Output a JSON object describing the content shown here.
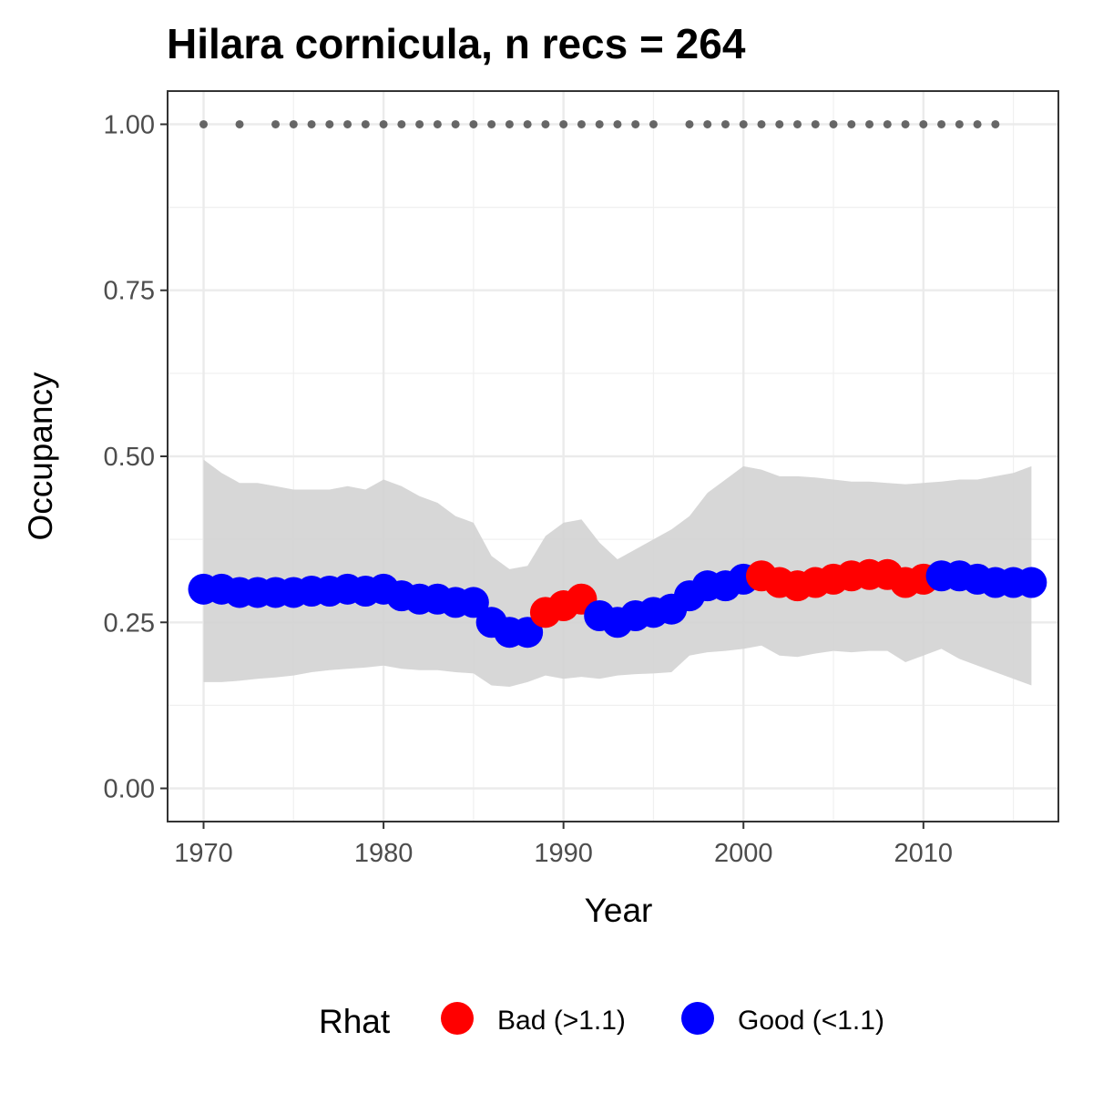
{
  "chart_data": {
    "type": "line",
    "title": "Hilara cornicula, n recs = 264",
    "xlabel": "Year",
    "ylabel": "Occupancy",
    "xlim": [
      1968,
      2017.5
    ],
    "ylim": [
      -0.05,
      1.05
    ],
    "x_ticks": [
      1970,
      1980,
      1990,
      2000,
      2010
    ],
    "x_tick_labels": [
      "1970",
      "1980",
      "1990",
      "2000",
      "2010"
    ],
    "y_ticks": [
      0,
      0.25,
      0.5,
      0.75,
      1.0
    ],
    "y_tick_labels": [
      "0.00",
      "0.25",
      "0.50",
      "0.75",
      "1.00"
    ],
    "grid": true,
    "legend": {
      "title": "Rhat",
      "position": "bottom",
      "entries": [
        {
          "label": "Bad (>1.1)",
          "color": "#ff0000"
        },
        {
          "label": "Good (<1.1)",
          "color": "#0000ff"
        }
      ]
    },
    "colors": {
      "bad": "#ff0000",
      "good": "#0000ff",
      "ribbon": "#d3d3d3",
      "record_dots": "#666666"
    },
    "x": [
      1970,
      1971,
      1972,
      1973,
      1974,
      1975,
      1976,
      1977,
      1978,
      1979,
      1980,
      1981,
      1982,
      1983,
      1984,
      1985,
      1986,
      1987,
      1988,
      1989,
      1990,
      1991,
      1992,
      1993,
      1994,
      1995,
      1996,
      1997,
      1998,
      1999,
      2000,
      2001,
      2002,
      2003,
      2004,
      2005,
      2006,
      2007,
      2008,
      2009,
      2010,
      2011,
      2012,
      2013,
      2014,
      2015,
      2016
    ],
    "series": [
      {
        "name": "Occupancy",
        "values": [
          0.3,
          0.3,
          0.295,
          0.295,
          0.295,
          0.295,
          0.297,
          0.297,
          0.3,
          0.297,
          0.3,
          0.29,
          0.285,
          0.285,
          0.28,
          0.28,
          0.25,
          0.235,
          0.235,
          0.265,
          0.275,
          0.285,
          0.26,
          0.25,
          0.26,
          0.265,
          0.27,
          0.29,
          0.305,
          0.305,
          0.315,
          0.32,
          0.31,
          0.305,
          0.31,
          0.315,
          0.32,
          0.322,
          0.322,
          0.31,
          0.315,
          0.32,
          0.32,
          0.315,
          0.31,
          0.31,
          0.31
        ],
        "rhat": [
          "Good",
          "Good",
          "Good",
          "Good",
          "Good",
          "Good",
          "Good",
          "Good",
          "Good",
          "Good",
          "Good",
          "Good",
          "Good",
          "Good",
          "Good",
          "Good",
          "Good",
          "Good",
          "Good",
          "Bad",
          "Bad",
          "Bad",
          "Good",
          "Good",
          "Good",
          "Good",
          "Good",
          "Good",
          "Good",
          "Good",
          "Good",
          "Bad",
          "Bad",
          "Bad",
          "Bad",
          "Bad",
          "Bad",
          "Bad",
          "Bad",
          "Bad",
          "Bad",
          "Good",
          "Good",
          "Good",
          "Good",
          "Good",
          "Good"
        ],
        "lower": [
          0.16,
          0.16,
          0.162,
          0.165,
          0.167,
          0.17,
          0.175,
          0.178,
          0.18,
          0.182,
          0.185,
          0.18,
          0.178,
          0.178,
          0.175,
          0.173,
          0.155,
          0.153,
          0.16,
          0.17,
          0.165,
          0.168,
          0.165,
          0.17,
          0.172,
          0.173,
          0.175,
          0.2,
          0.205,
          0.207,
          0.21,
          0.215,
          0.2,
          0.198,
          0.203,
          0.207,
          0.205,
          0.207,
          0.207,
          0.19,
          0.2,
          0.21,
          0.195,
          0.185,
          0.175,
          0.165,
          0.155
        ],
        "upper": [
          0.495,
          0.475,
          0.46,
          0.46,
          0.455,
          0.45,
          0.45,
          0.45,
          0.455,
          0.45,
          0.465,
          0.455,
          0.44,
          0.43,
          0.41,
          0.4,
          0.35,
          0.33,
          0.335,
          0.38,
          0.4,
          0.405,
          0.37,
          0.345,
          0.36,
          0.375,
          0.39,
          0.41,
          0.445,
          0.465,
          0.485,
          0.48,
          0.47,
          0.47,
          0.468,
          0.465,
          0.462,
          0.462,
          0.46,
          0.458,
          0.46,
          0.462,
          0.465,
          0.465,
          0.47,
          0.475,
          0.485
        ]
      },
      {
        "name": "Records",
        "x": [
          1970,
          1972,
          1974,
          1975,
          1976,
          1977,
          1978,
          1979,
          1980,
          1981,
          1982,
          1983,
          1984,
          1985,
          1986,
          1987,
          1988,
          1989,
          1990,
          1991,
          1992,
          1993,
          1994,
          1995,
          1997,
          1998,
          1999,
          2000,
          2001,
          2002,
          2003,
          2004,
          2005,
          2006,
          2007,
          2008,
          2009,
          2010,
          2011,
          2012,
          2013,
          2014
        ],
        "values_constant": 1.0
      }
    ]
  }
}
